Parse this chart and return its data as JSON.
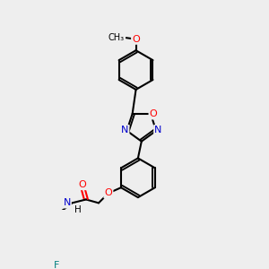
{
  "bg_color": "#eeeeee",
  "bond_color": "#000000",
  "bond_lw": 1.5,
  "atom_colors": {
    "O": "#ff0000",
    "N": "#0000cc",
    "F": "#008080",
    "C": "#000000"
  },
  "font_size": 7.5,
  "figsize": [
    3.0,
    3.0
  ],
  "dpi": 100
}
